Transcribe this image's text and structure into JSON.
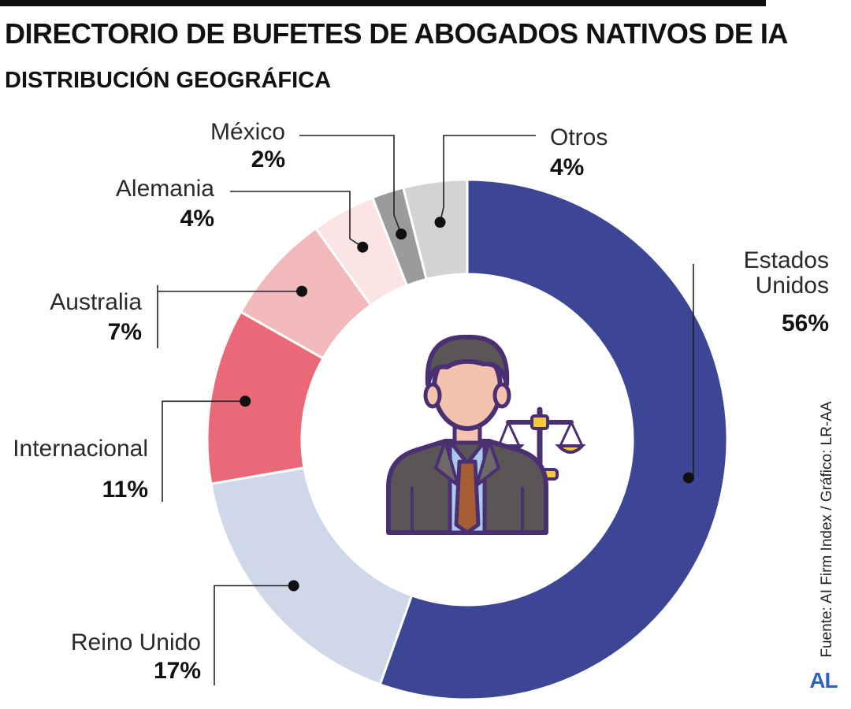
{
  "chart_data": {
    "type": "pie",
    "title": "DIRECTORIO DE BUFETES DE ABOGADOS NATIVOS DE IA",
    "subtitle": "DISTRIBUCIÓN GEOGRÁFICA",
    "donut": true,
    "start_angle_deg": 0,
    "direction": "clockwise",
    "slices": [
      {
        "label": "Estados Unidos",
        "label_lines": [
          "Estados",
          "Unidos"
        ],
        "value": 56,
        "value_label": "56%",
        "color": "#3c4694"
      },
      {
        "label": "Reino Unido",
        "label_lines": [
          "Reino Unido"
        ],
        "value": 17,
        "value_label": "17%",
        "color": "#ced8e8"
      },
      {
        "label": "Internacional",
        "label_lines": [
          "Internacional"
        ],
        "value": 11,
        "value_label": "11%",
        "color": "#ea6878"
      },
      {
        "label": "Australia",
        "label_lines": [
          "Australia"
        ],
        "value": 7,
        "value_label": "7%",
        "color": "#f1b9bc"
      },
      {
        "label": "Alemania",
        "label_lines": [
          "Alemania"
        ],
        "value": 4,
        "value_label": "4%",
        "color": "#fbe4e4"
      },
      {
        "label": "México",
        "label_lines": [
          "México"
        ],
        "value": 2,
        "value_label": "2%",
        "color": "#9b9b9b"
      },
      {
        "label": "Otros",
        "label_lines": [
          "Otros"
        ],
        "value": 4,
        "value_label": "4%",
        "color": "#d3d3d3"
      }
    ]
  },
  "source_text": "Fuente: AI Firm Index / Gráfico: LR-AA",
  "logo_text": "AL",
  "center_icon": "lawyer-with-scales-icon"
}
